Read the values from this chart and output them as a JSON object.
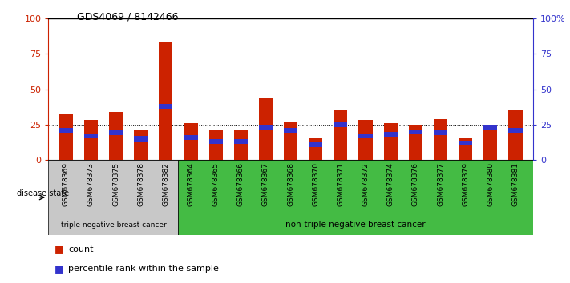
{
  "title": "GDS4069 / 8142466",
  "samples": [
    "GSM678369",
    "GSM678373",
    "GSM678375",
    "GSM678378",
    "GSM678382",
    "GSM678364",
    "GSM678365",
    "GSM678366",
    "GSM678367",
    "GSM678368",
    "GSM678370",
    "GSM678371",
    "GSM678372",
    "GSM678374",
    "GSM678376",
    "GSM678377",
    "GSM678379",
    "GSM678380",
    "GSM678381"
  ],
  "red_values": [
    33,
    28,
    34,
    21,
    83,
    26,
    21,
    21,
    44,
    27,
    15,
    35,
    28,
    26,
    25,
    29,
    16,
    24,
    35
  ],
  "blue_values": [
    21,
    17,
    19,
    15,
    38,
    16,
    13,
    13,
    23,
    21,
    11,
    25,
    17,
    18,
    20,
    19,
    12,
    23,
    21
  ],
  "group1_count": 5,
  "group2_count": 14,
  "group1_label": "triple negative breast cancer",
  "group2_label": "non-triple negative breast cancer",
  "disease_state_label": "disease state",
  "legend_red": "count",
  "legend_blue": "percentile rank within the sample",
  "ylim": [
    0,
    100
  ],
  "yticks": [
    0,
    25,
    50,
    75,
    100
  ],
  "right_ytick_labels": [
    "0",
    "25",
    "50",
    "75",
    "100%"
  ],
  "red_color": "#cc2200",
  "blue_color": "#3333cc",
  "group1_bg": "#c8c8c8",
  "group2_bg": "#44bb44",
  "bar_width": 0.55,
  "background_color": "#ffffff",
  "blue_bar_height": 3.5
}
